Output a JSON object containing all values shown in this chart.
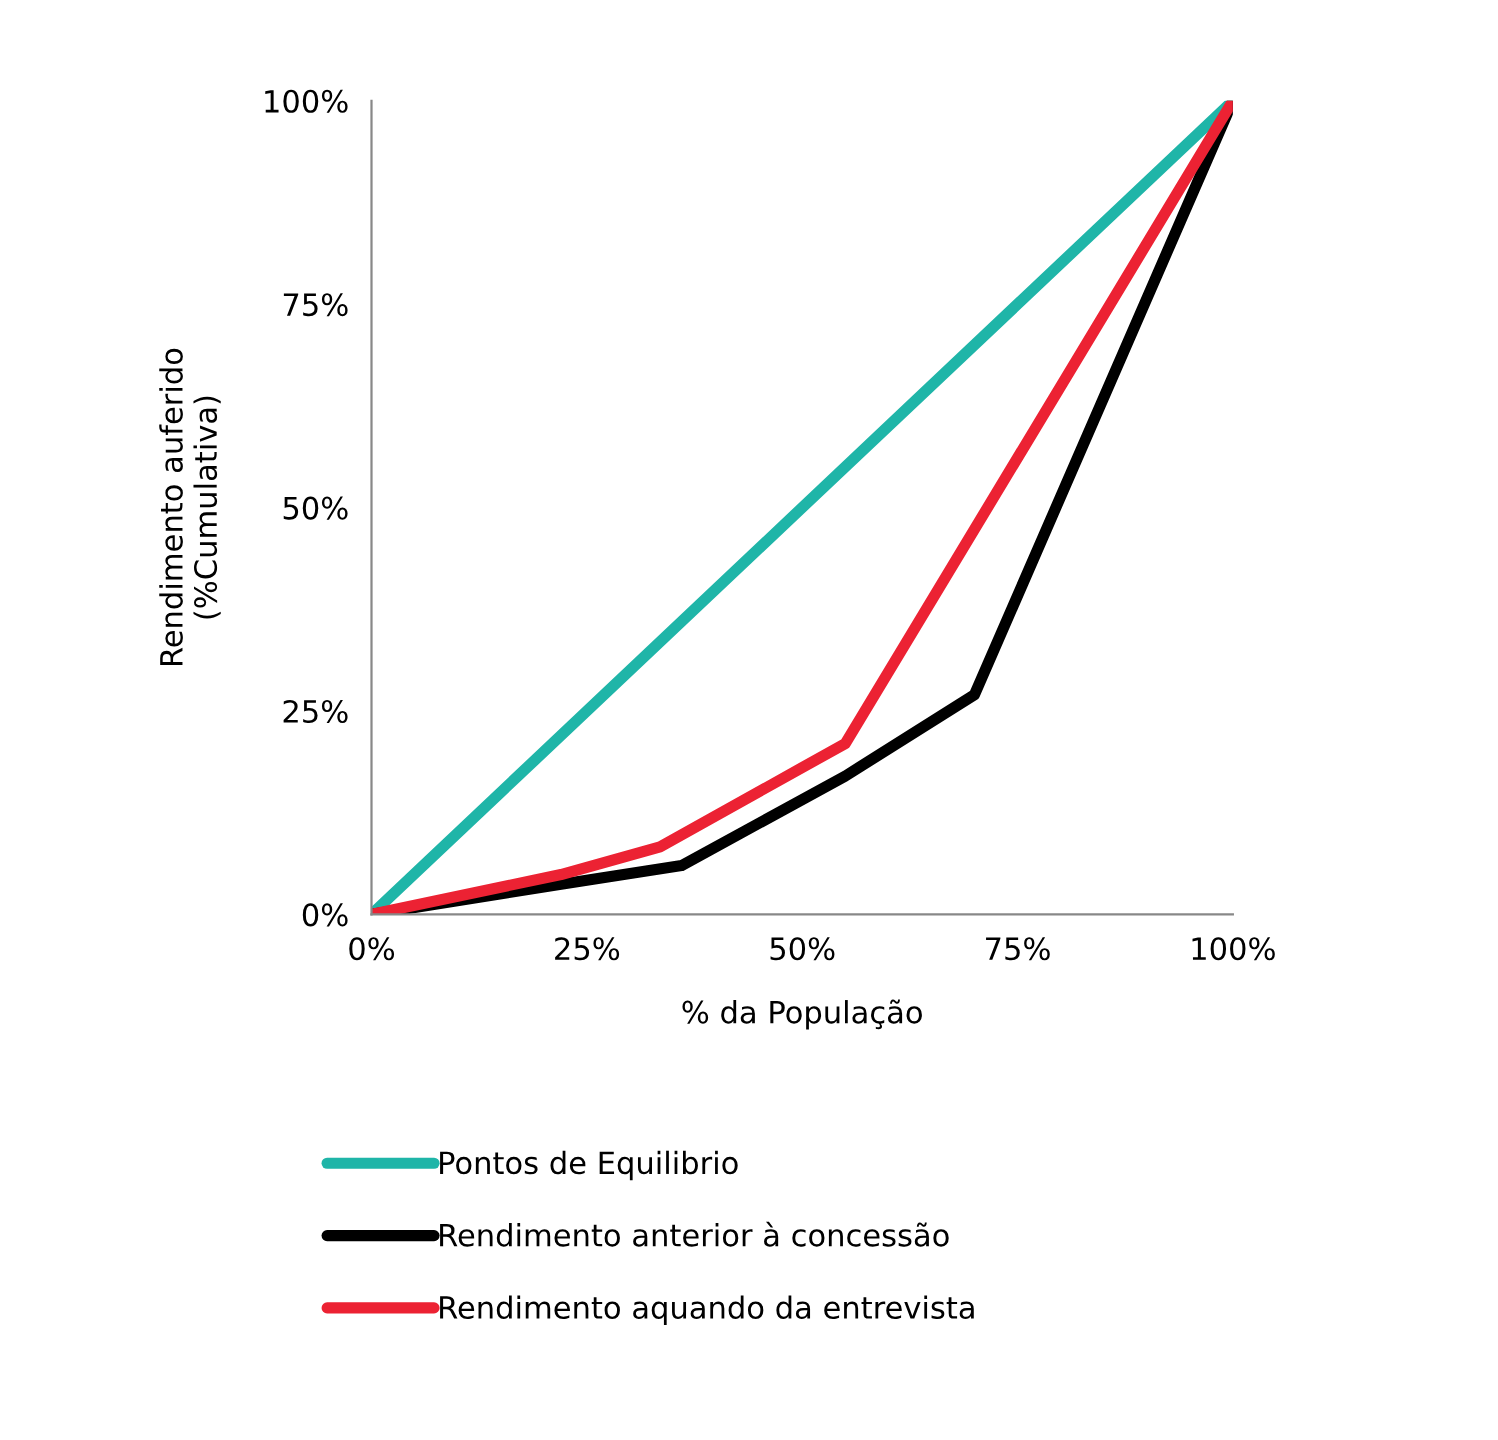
{
  "chart_data": {
    "type": "line",
    "xlabel": "% da População",
    "ylabel": "Rendimento auferido\n(%Cumulativa)",
    "xlim": [
      0,
      100
    ],
    "ylim": [
      0,
      100
    ],
    "xticks": [
      {
        "value": 0,
        "label": "0%"
      },
      {
        "value": 25,
        "label": "25%"
      },
      {
        "value": 50,
        "label": "50%"
      },
      {
        "value": 75,
        "label": "75%"
      },
      {
        "value": 100,
        "label": "100%"
      }
    ],
    "yticks": [
      {
        "value": 0,
        "label": "0%"
      },
      {
        "value": 25,
        "label": "25%"
      },
      {
        "value": 50,
        "label": "50%"
      },
      {
        "value": 75,
        "label": "75%"
      },
      {
        "value": 100,
        "label": "100%"
      }
    ],
    "grid": false,
    "legend": "bottom",
    "marker": "none",
    "line_style": "solid",
    "series": [
      {
        "name": "Pontos de Equilibrio",
        "color": "#1fb5a8",
        "x": [
          0,
          100
        ],
        "values": [
          0,
          100
        ]
      },
      {
        "name": "Rendimento anterior à concessão",
        "color": "#000000",
        "x": [
          0,
          22,
          36,
          55,
          70,
          100
        ],
        "values": [
          0,
          3.7,
          6,
          17,
          27,
          100
        ]
      },
      {
        "name": "Rendimento aquando da entrevista",
        "color": "#ec2233",
        "x": [
          0,
          22,
          33.5,
          55,
          100
        ],
        "values": [
          0,
          4.9,
          8.3,
          21,
          100
        ]
      }
    ]
  }
}
